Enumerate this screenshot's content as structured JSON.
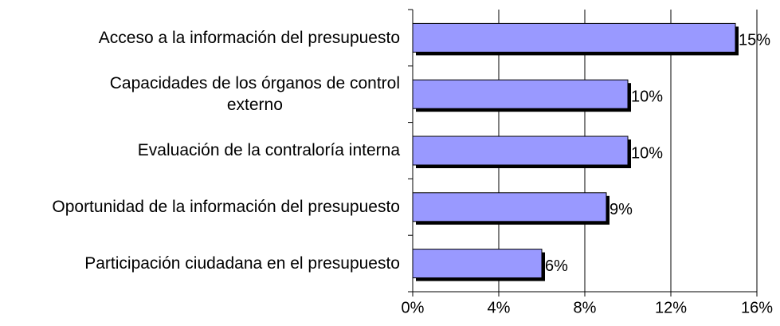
{
  "chart_data": {
    "type": "bar",
    "orientation": "horizontal",
    "categories": [
      "Acceso a la información del presupuesto",
      "Capacidades de los órganos de control\nexterno",
      "Evaluación de la contraloría interna",
      "Oportunidad de la información del presupuesto",
      "Participación ciudadana en el presupuesto"
    ],
    "values": [
      15,
      10,
      10,
      9,
      6
    ],
    "value_labels": [
      "15%",
      "10%",
      "10%",
      "9%",
      "6%"
    ],
    "color": "#9999ff",
    "xlim": [
      0,
      16
    ],
    "xticks": [
      {
        "value": 0,
        "label": "0%"
      },
      {
        "value": 4,
        "label": "4%"
      },
      {
        "value": 8,
        "label": "8%"
      },
      {
        "value": 12,
        "label": "12%"
      },
      {
        "value": 16,
        "label": "16%"
      }
    ],
    "grid": true
  }
}
